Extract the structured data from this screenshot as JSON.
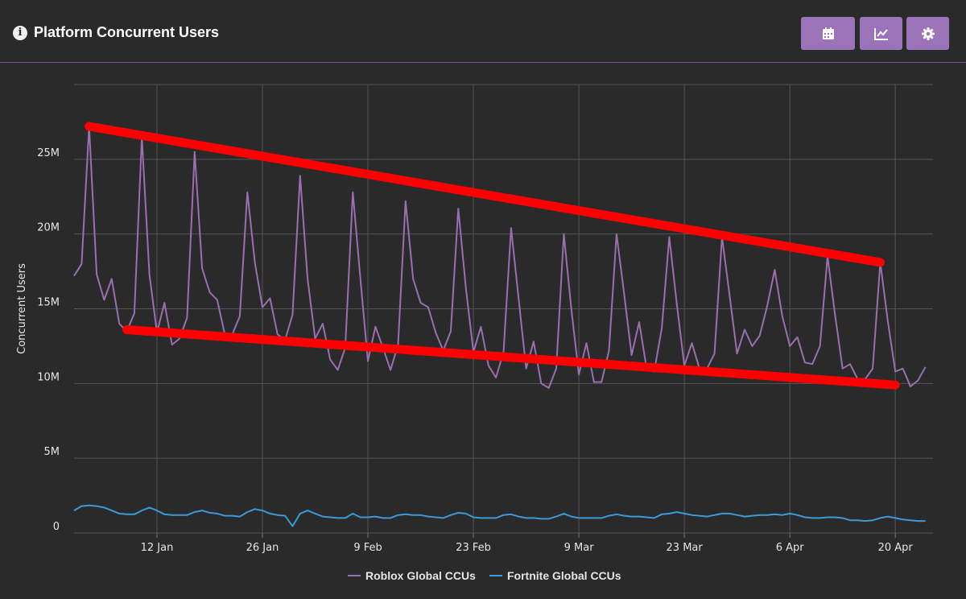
{
  "header": {
    "title": "Platform Concurrent Users",
    "info_icon": "info-icon",
    "buttons": [
      {
        "name": "calendar-button",
        "icon": "calendar-icon"
      },
      {
        "name": "chart-type-button",
        "icon": "line-chart-icon"
      },
      {
        "name": "settings-button",
        "icon": "gear-icon"
      }
    ]
  },
  "colors": {
    "background": "#2a2a2b",
    "accent": "#9b73b8",
    "roblox": "#9a6fb0",
    "fortnite": "#3a9ad9",
    "annotation": "#ff0000"
  },
  "chart_data": {
    "type": "line",
    "ylabel": "Concurrent Users",
    "ylim": [
      0,
      30000000
    ],
    "yticks": [
      0,
      5000000,
      10000000,
      15000000,
      20000000,
      25000000
    ],
    "ytick_labels": [
      "0",
      "5M",
      "10M",
      "15M",
      "20M",
      "25M"
    ],
    "x_start": "2020-01-01",
    "x_end": "2020-04-24",
    "xticks": [
      "2020-01-12",
      "2020-01-26",
      "2020-02-09",
      "2020-02-23",
      "2020-03-08",
      "2020-03-22",
      "2020-04-05",
      "2020-04-19"
    ],
    "xtick_labels": [
      "12 Jan",
      "26 Jan",
      "9 Feb",
      "23 Feb",
      "9 Mar",
      "23 Mar",
      "6 Apr",
      "20 Apr"
    ],
    "grid": true,
    "legend_position": "bottom-center",
    "series": [
      {
        "name": "Roblox Global CCUs",
        "color": "#9a6fb0",
        "start": "2020-01-01",
        "values": [
          17.2,
          18.0,
          27.2,
          17.3,
          15.6,
          17.0,
          14.0,
          13.5,
          14.7,
          26.5,
          17.3,
          13.4,
          15.4,
          12.6,
          13.0,
          14.4,
          25.5,
          17.7,
          16.1,
          15.6,
          13.3,
          13.3,
          14.5,
          22.8,
          18.1,
          15.1,
          15.7,
          13.3,
          12.9,
          14.6,
          23.9,
          17.0,
          13.0,
          14.0,
          11.6,
          10.9,
          12.4,
          22.8,
          17.0,
          11.5,
          13.8,
          12.4,
          10.9,
          12.6,
          22.2,
          17.0,
          15.4,
          15.1,
          13.4,
          12.2,
          13.5,
          21.7,
          16.4,
          12.1,
          13.8,
          11.2,
          10.4,
          12.1,
          20.4,
          15.7,
          11.0,
          12.8,
          10.0,
          9.7,
          11.0,
          20.0,
          15.0,
          10.6,
          12.7,
          10.1,
          10.1,
          12.2,
          20.0,
          16.0,
          11.9,
          14.1,
          11.0,
          10.8,
          13.7,
          19.8,
          15.3,
          11.2,
          12.7,
          11.0,
          11.0,
          12.0,
          19.8,
          15.9,
          12.0,
          13.6,
          12.5,
          13.2,
          15.2,
          17.6,
          14.5,
          12.5,
          13.1,
          11.4,
          11.3,
          12.5,
          18.5,
          14.6,
          11.0,
          11.3,
          10.3,
          10.3,
          11.0,
          18.1,
          14.2,
          10.8,
          11.0,
          9.8,
          10.2,
          11.1
        ]
      },
      {
        "name": "Fortnite Global CCUs",
        "color": "#3a9ad9",
        "start": "2020-01-01",
        "values": [
          1.5,
          1.8,
          1.85,
          1.8,
          1.7,
          1.5,
          1.3,
          1.25,
          1.25,
          1.5,
          1.7,
          1.5,
          1.25,
          1.2,
          1.2,
          1.2,
          1.4,
          1.5,
          1.35,
          1.3,
          1.15,
          1.15,
          1.1,
          1.4,
          1.6,
          1.5,
          1.3,
          1.2,
          1.15,
          0.45,
          1.3,
          1.5,
          1.3,
          1.1,
          1.05,
          1.0,
          1.0,
          1.3,
          1.05,
          1.05,
          1.1,
          1.0,
          1.0,
          1.2,
          1.25,
          1.2,
          1.2,
          1.1,
          1.05,
          1.0,
          1.2,
          1.35,
          1.3,
          1.05,
          1.0,
          1.0,
          1.0,
          1.2,
          1.25,
          1.1,
          1.0,
          1.0,
          0.95,
          0.95,
          1.1,
          1.3,
          1.1,
          1.0,
          1.0,
          1.0,
          1.0,
          1.15,
          1.25,
          1.15,
          1.1,
          1.1,
          1.05,
          1.0,
          1.25,
          1.3,
          1.4,
          1.3,
          1.2,
          1.15,
          1.1,
          1.2,
          1.3,
          1.3,
          1.2,
          1.1,
          1.15,
          1.2,
          1.2,
          1.25,
          1.2,
          1.3,
          1.2,
          1.05,
          1.0,
          1.0,
          1.05,
          1.05,
          1.0,
          0.85,
          0.85,
          0.8,
          0.85,
          1.0,
          1.1,
          1.0,
          0.9,
          0.85,
          0.8,
          0.8
        ]
      }
    ],
    "value_unit": "M",
    "trendlines": [
      {
        "from": [
          "2020-01-03",
          27.2
        ],
        "to": [
          "2020-04-17",
          18.1
        ]
      },
      {
        "from": [
          "2020-01-08",
          13.6
        ],
        "to": [
          "2020-04-19",
          9.9
        ]
      }
    ]
  }
}
